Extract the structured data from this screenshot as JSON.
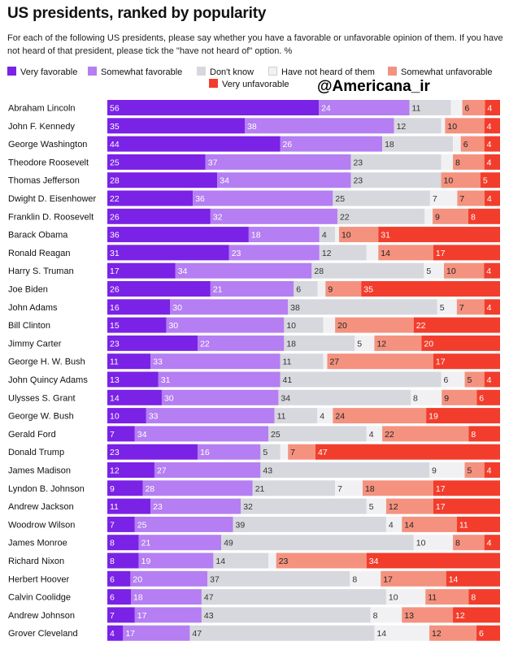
{
  "chart_data": {
    "type": "bar",
    "orientation": "horizontal",
    "stacked": true,
    "title": "US presidents, ranked by popularity",
    "subtitle": "For each of the following US presidents, please say whether you have a favorable or unfavorable opinion of them. If you have not heard of that president, please tick the \"have not heard of\" option. %",
    "xlim": [
      0,
      100
    ],
    "legend_position": "top",
    "series": [
      {
        "name": "Very favorable",
        "color": "#7a22e6",
        "label_color": "#ffffff"
      },
      {
        "name": "Somewhat favorable",
        "color": "#b57ef2",
        "label_color": "#ffffff"
      },
      {
        "name": "Don't know",
        "color": "#d7d8de",
        "label_color": "#333333"
      },
      {
        "name": "Have not heard of them",
        "color": "#f1f1f3",
        "label_color": "#333333"
      },
      {
        "name": "Somewhat unfavorable",
        "color": "#f4927f",
        "label_color": "#222222"
      },
      {
        "name": "Very unfavorable",
        "color": "#f23d2c",
        "label_color": "#ffffff"
      }
    ],
    "categories": [
      "Abraham Lincoln",
      "John F. Kennedy",
      "George Washington",
      "Theodore Roosevelt",
      "Thomas Jefferson",
      "Dwight D. Eisenhower",
      "Franklin D. Roosevelt",
      "Barack Obama",
      "Ronald Reagan",
      "Harry S. Truman",
      "Joe Biden",
      "John Adams",
      "Bill Clinton",
      "Jimmy Carter",
      "George H. W. Bush",
      "John Quincy Adams",
      "Ulysses S. Grant",
      "George W. Bush",
      "Gerald Ford",
      "Donald Trump",
      "James Madison",
      "Lyndon B. Johnson",
      "Andrew Jackson",
      "Woodrow Wilson",
      "James Monroe",
      "Richard Nixon",
      "Herbert Hoover",
      "Calvin Coolidge",
      "Andrew Johnson",
      "Grover Cleveland"
    ],
    "values": [
      [
        56,
        24,
        11,
        3,
        6,
        4
      ],
      [
        35,
        38,
        12,
        1,
        10,
        4
      ],
      [
        44,
        26,
        18,
        2,
        6,
        4
      ],
      [
        25,
        37,
        23,
        3,
        8,
        4
      ],
      [
        28,
        34,
        23,
        0,
        10,
        5
      ],
      [
        22,
        36,
        25,
        7,
        7,
        4
      ],
      [
        26,
        32,
        22,
        2,
        9,
        8
      ],
      [
        36,
        18,
        4,
        1,
        10,
        31
      ],
      [
        31,
        23,
        12,
        3,
        14,
        17
      ],
      [
        17,
        34,
        28,
        5,
        10,
        4
      ],
      [
        26,
        21,
        6,
        2,
        9,
        35
      ],
      [
        16,
        30,
        38,
        5,
        7,
        4
      ],
      [
        15,
        30,
        10,
        3,
        20,
        22
      ],
      [
        23,
        22,
        18,
        5,
        12,
        20
      ],
      [
        11,
        33,
        11,
        1,
        27,
        17
      ],
      [
        13,
        31,
        41,
        6,
        5,
        4
      ],
      [
        14,
        30,
        34,
        8,
        9,
        6
      ],
      [
        10,
        33,
        11,
        4,
        24,
        19
      ],
      [
        7,
        34,
        25,
        4,
        22,
        8
      ],
      [
        23,
        16,
        5,
        2,
        7,
        47
      ],
      [
        12,
        27,
        43,
        9,
        5,
        4
      ],
      [
        9,
        28,
        21,
        7,
        18,
        17
      ],
      [
        11,
        23,
        32,
        5,
        12,
        17
      ],
      [
        7,
        25,
        39,
        4,
        14,
        11
      ],
      [
        8,
        21,
        49,
        10,
        8,
        4
      ],
      [
        8,
        19,
        14,
        2,
        23,
        34
      ],
      [
        6,
        20,
        37,
        8,
        17,
        14
      ],
      [
        6,
        18,
        47,
        10,
        11,
        8
      ],
      [
        7,
        17,
        43,
        8,
        13,
        12
      ],
      [
        4,
        17,
        47,
        14,
        12,
        6
      ]
    ],
    "display_labels": [
      [
        "56",
        "24",
        "11",
        "",
        "6",
        "4"
      ],
      [
        "35",
        "38",
        "12",
        "",
        "10",
        "4"
      ],
      [
        "44",
        "26",
        "18",
        "",
        "6",
        "4"
      ],
      [
        "25",
        "37",
        "23",
        "",
        "8",
        "4"
      ],
      [
        "28",
        "34",
        "23",
        "",
        "10",
        "5"
      ],
      [
        "22",
        "36",
        "25",
        "7",
        "7",
        "4"
      ],
      [
        "26",
        "32",
        "22",
        "",
        "9",
        "8"
      ],
      [
        "36",
        "18",
        "4",
        "",
        "10",
        "31"
      ],
      [
        "31",
        "23",
        "12",
        "",
        "14",
        "17"
      ],
      [
        "17",
        "34",
        "28",
        "5",
        "10",
        "4"
      ],
      [
        "26",
        "21",
        "6",
        "",
        "9",
        "35"
      ],
      [
        "16",
        "30",
        "38",
        "5",
        "7",
        "4"
      ],
      [
        "15",
        "30",
        "10",
        "",
        "20",
        "22"
      ],
      [
        "23",
        "22",
        "18",
        "5",
        "12",
        "20"
      ],
      [
        "11",
        "33",
        "11",
        "",
        "27",
        "17"
      ],
      [
        "13",
        "31",
        "41",
        "6",
        "5",
        "4"
      ],
      [
        "14",
        "30",
        "34",
        "8",
        "9",
        "6"
      ],
      [
        "10",
        "33",
        "11",
        "4",
        "24",
        "19"
      ],
      [
        "7",
        "34",
        "25",
        "4",
        "22",
        "8"
      ],
      [
        "23",
        "16",
        "5",
        "",
        "7",
        "47"
      ],
      [
        "12",
        "27",
        "43",
        "9",
        "5",
        "4"
      ],
      [
        "9",
        "28",
        "21",
        "7",
        "18",
        "17"
      ],
      [
        "11",
        "23",
        "32",
        "5",
        "12",
        "17"
      ],
      [
        "7",
        "25",
        "39",
        "4",
        "14",
        "11"
      ],
      [
        "8",
        "21",
        "49",
        "10",
        "8",
        "4"
      ],
      [
        "8",
        "19",
        "14",
        "",
        "23",
        "34"
      ],
      [
        "6",
        "20",
        "37",
        "8",
        "17",
        "14"
      ],
      [
        "6",
        "18",
        "47",
        "10",
        "11",
        "8"
      ],
      [
        "7",
        "17",
        "43",
        "8",
        "13",
        "12"
      ],
      [
        "4",
        "17",
        "47",
        "14",
        "12",
        "6"
      ]
    ]
  },
  "watermark": "@Americana_ir"
}
